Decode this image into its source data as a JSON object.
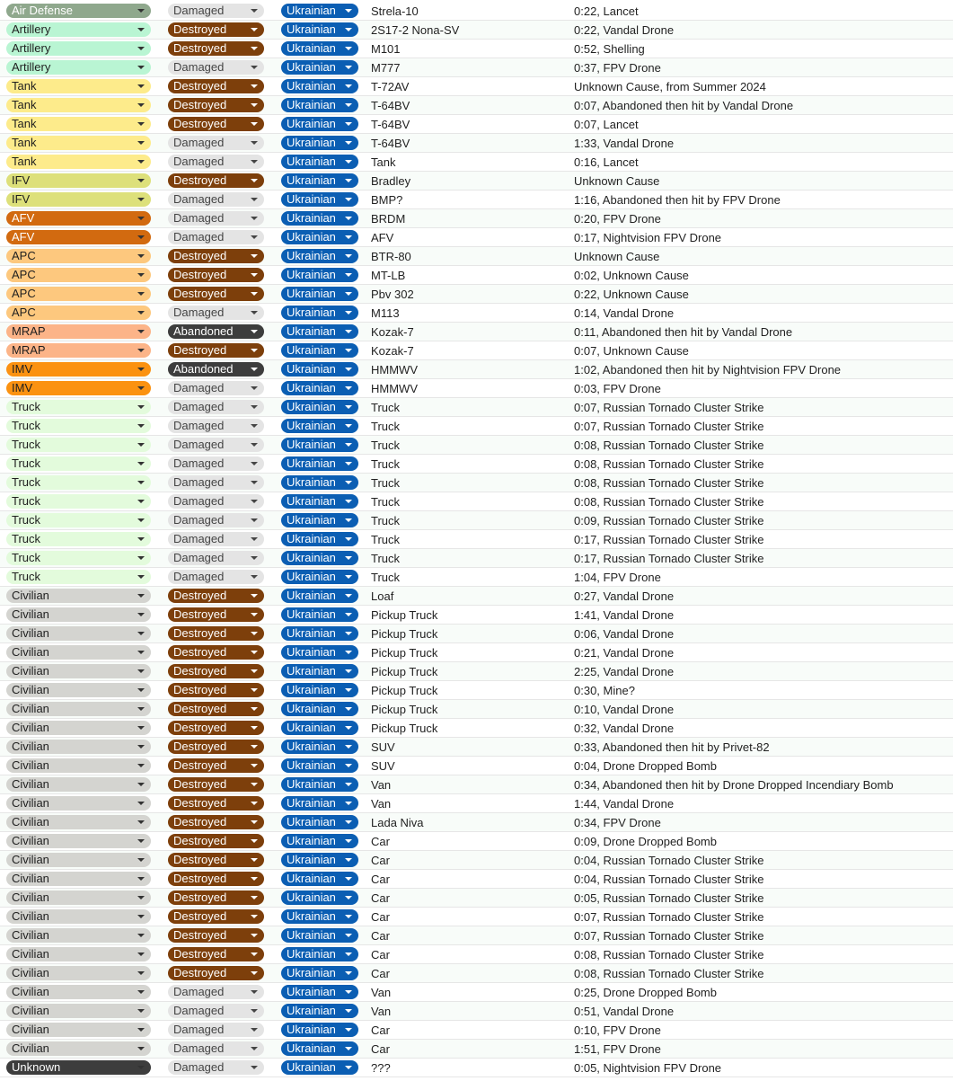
{
  "colors": {
    "type": {
      "Air Defense": {
        "bg": "#8fa88d",
        "fg": "#ffffff"
      },
      "Artillery": {
        "bg": "#b9f5d3",
        "fg": "#1f1f1f"
      },
      "Tank": {
        "bg": "#fdeb8b",
        "fg": "#1f1f1f"
      },
      "IFV": {
        "bg": "#dde07a",
        "fg": "#1f1f1f"
      },
      "AFV": {
        "bg": "#d26a10",
        "fg": "#ffffff"
      },
      "APC": {
        "bg": "#fdc87e",
        "fg": "#1f1f1f"
      },
      "MRAP": {
        "bg": "#fcb488",
        "fg": "#1f1f1f"
      },
      "IMV": {
        "bg": "#fb9211",
        "fg": "#1f1f1f"
      },
      "Truck": {
        "bg": "#e3fbdc",
        "fg": "#1f1f1f"
      },
      "Civilian": {
        "bg": "#d4d4d0",
        "fg": "#1f1f1f"
      },
      "Unknown": {
        "bg": "#3d3d3d",
        "fg": "#ffffff"
      }
    },
    "status": {
      "Damaged": {
        "bg": "#e4e4e4",
        "fg": "#454545"
      },
      "Destroyed": {
        "bg": "#7d3f0b",
        "fg": "#ffffff"
      },
      "Abandoned": {
        "bg": "#3d3d3d",
        "fg": "#ffffff"
      }
    },
    "side": {
      "Ukrainian": {
        "bg": "#0b5eb3",
        "fg": "#ffffff"
      }
    }
  },
  "rows": [
    {
      "type": "Air Defense",
      "status": "Damaged",
      "side": "Ukrainian",
      "model": "Strela-10",
      "note": "0:22, Lancet"
    },
    {
      "type": "Artillery",
      "status": "Destroyed",
      "side": "Ukrainian",
      "model": "2S17-2 Nona-SV",
      "note": "0:22, Vandal Drone"
    },
    {
      "type": "Artillery",
      "status": "Destroyed",
      "side": "Ukrainian",
      "model": "M101",
      "note": "0:52, Shelling"
    },
    {
      "type": "Artillery",
      "status": "Damaged",
      "side": "Ukrainian",
      "model": "M777",
      "note": "0:37, FPV Drone"
    },
    {
      "type": "Tank",
      "status": "Destroyed",
      "side": "Ukrainian",
      "model": "T-72AV",
      "note": "Unknown Cause, from Summer 2024"
    },
    {
      "type": "Tank",
      "status": "Destroyed",
      "side": "Ukrainian",
      "model": "T-64BV",
      "note": "0:07, Abandoned then hit by Vandal Drone"
    },
    {
      "type": "Tank",
      "status": "Destroyed",
      "side": "Ukrainian",
      "model": "T-64BV",
      "note": "0:07, Lancet"
    },
    {
      "type": "Tank",
      "status": "Damaged",
      "side": "Ukrainian",
      "model": "T-64BV",
      "note": "1:33, Vandal Drone"
    },
    {
      "type": "Tank",
      "status": "Damaged",
      "side": "Ukrainian",
      "model": "Tank",
      "note": "0:16, Lancet"
    },
    {
      "type": "IFV",
      "status": "Destroyed",
      "side": "Ukrainian",
      "model": "Bradley",
      "note": "Unknown Cause"
    },
    {
      "type": "IFV",
      "status": "Damaged",
      "side": "Ukrainian",
      "model": "BMP?",
      "note": "1:16, Abandoned then hit by FPV Drone"
    },
    {
      "type": "AFV",
      "status": "Damaged",
      "side": "Ukrainian",
      "model": "BRDM",
      "note": "0:20, FPV Drone"
    },
    {
      "type": "AFV",
      "status": "Damaged",
      "side": "Ukrainian",
      "model": "AFV",
      "note": "0:17, Nightvision FPV Drone"
    },
    {
      "type": "APC",
      "status": "Destroyed",
      "side": "Ukrainian",
      "model": "BTR-80",
      "note": "Unknown Cause"
    },
    {
      "type": "APC",
      "status": "Destroyed",
      "side": "Ukrainian",
      "model": "MT-LB",
      "note": "0:02, Unknown Cause"
    },
    {
      "type": "APC",
      "status": "Destroyed",
      "side": "Ukrainian",
      "model": "Pbv 302",
      "note": "0:22, Unknown Cause"
    },
    {
      "type": "APC",
      "status": "Damaged",
      "side": "Ukrainian",
      "model": "M113",
      "note": "0:14, Vandal Drone"
    },
    {
      "type": "MRAP",
      "status": "Abandoned",
      "side": "Ukrainian",
      "model": "Kozak-7",
      "note": "0:11, Abandoned then hit by Vandal Drone"
    },
    {
      "type": "MRAP",
      "status": "Destroyed",
      "side": "Ukrainian",
      "model": "Kozak-7",
      "note": "0:07, Unknown Cause"
    },
    {
      "type": "IMV",
      "status": "Abandoned",
      "side": "Ukrainian",
      "model": "HMMWV",
      "note": "1:02, Abandoned then hit by Nightvision FPV Drone"
    },
    {
      "type": "IMV",
      "status": "Damaged",
      "side": "Ukrainian",
      "model": "HMMWV",
      "note": "0:03, FPV Drone"
    },
    {
      "type": "Truck",
      "status": "Damaged",
      "side": "Ukrainian",
      "model": "Truck",
      "note": "0:07, Russian Tornado Cluster Strike"
    },
    {
      "type": "Truck",
      "status": "Damaged",
      "side": "Ukrainian",
      "model": "Truck",
      "note": "0:07, Russian Tornado Cluster Strike"
    },
    {
      "type": "Truck",
      "status": "Damaged",
      "side": "Ukrainian",
      "model": "Truck",
      "note": "0:08, Russian Tornado Cluster Strike"
    },
    {
      "type": "Truck",
      "status": "Damaged",
      "side": "Ukrainian",
      "model": "Truck",
      "note": "0:08, Russian Tornado Cluster Strike"
    },
    {
      "type": "Truck",
      "status": "Damaged",
      "side": "Ukrainian",
      "model": "Truck",
      "note": "0:08, Russian Tornado Cluster Strike"
    },
    {
      "type": "Truck",
      "status": "Damaged",
      "side": "Ukrainian",
      "model": "Truck",
      "note": "0:08, Russian Tornado Cluster Strike"
    },
    {
      "type": "Truck",
      "status": "Damaged",
      "side": "Ukrainian",
      "model": "Truck",
      "note": "0:09, Russian Tornado Cluster Strike"
    },
    {
      "type": "Truck",
      "status": "Damaged",
      "side": "Ukrainian",
      "model": "Truck",
      "note": "0:17, Russian Tornado Cluster Strike"
    },
    {
      "type": "Truck",
      "status": "Damaged",
      "side": "Ukrainian",
      "model": "Truck",
      "note": "0:17, Russian Tornado Cluster Strike"
    },
    {
      "type": "Truck",
      "status": "Damaged",
      "side": "Ukrainian",
      "model": "Truck",
      "note": "1:04, FPV Drone"
    },
    {
      "type": "Civilian",
      "status": "Destroyed",
      "side": "Ukrainian",
      "model": "Loaf",
      "note": "0:27, Vandal Drone"
    },
    {
      "type": "Civilian",
      "status": "Destroyed",
      "side": "Ukrainian",
      "model": "Pickup Truck",
      "note": "1:41, Vandal Drone"
    },
    {
      "type": "Civilian",
      "status": "Destroyed",
      "side": "Ukrainian",
      "model": "Pickup Truck",
      "note": "0:06, Vandal Drone"
    },
    {
      "type": "Civilian",
      "status": "Destroyed",
      "side": "Ukrainian",
      "model": "Pickup Truck",
      "note": "0:21, Vandal Drone"
    },
    {
      "type": "Civilian",
      "status": "Destroyed",
      "side": "Ukrainian",
      "model": "Pickup Truck",
      "note": "2:25, Vandal Drone"
    },
    {
      "type": "Civilian",
      "status": "Destroyed",
      "side": "Ukrainian",
      "model": "Pickup Truck",
      "note": "0:30, Mine?"
    },
    {
      "type": "Civilian",
      "status": "Destroyed",
      "side": "Ukrainian",
      "model": "Pickup Truck",
      "note": "0:10, Vandal Drone"
    },
    {
      "type": "Civilian",
      "status": "Destroyed",
      "side": "Ukrainian",
      "model": "Pickup Truck",
      "note": "0:32, Vandal Drone"
    },
    {
      "type": "Civilian",
      "status": "Destroyed",
      "side": "Ukrainian",
      "model": "SUV",
      "note": "0:33, Abandoned then hit by Privet-82"
    },
    {
      "type": "Civilian",
      "status": "Destroyed",
      "side": "Ukrainian",
      "model": "SUV",
      "note": "0:04, Drone Dropped Bomb"
    },
    {
      "type": "Civilian",
      "status": "Destroyed",
      "side": "Ukrainian",
      "model": "Van",
      "note": "0:34, Abandoned then hit by Drone Dropped Incendiary Bomb"
    },
    {
      "type": "Civilian",
      "status": "Destroyed",
      "side": "Ukrainian",
      "model": "Van",
      "note": "1:44, Vandal Drone"
    },
    {
      "type": "Civilian",
      "status": "Destroyed",
      "side": "Ukrainian",
      "model": "Lada Niva",
      "note": "0:34, FPV Drone"
    },
    {
      "type": "Civilian",
      "status": "Destroyed",
      "side": "Ukrainian",
      "model": "Car",
      "note": "0:09, Drone Dropped Bomb"
    },
    {
      "type": "Civilian",
      "status": "Destroyed",
      "side": "Ukrainian",
      "model": "Car",
      "note": "0:04, Russian Tornado Cluster Strike"
    },
    {
      "type": "Civilian",
      "status": "Destroyed",
      "side": "Ukrainian",
      "model": "Car",
      "note": "0:04, Russian Tornado Cluster Strike"
    },
    {
      "type": "Civilian",
      "status": "Destroyed",
      "side": "Ukrainian",
      "model": "Car",
      "note": "0:05, Russian Tornado Cluster Strike"
    },
    {
      "type": "Civilian",
      "status": "Destroyed",
      "side": "Ukrainian",
      "model": "Car",
      "note": "0:07, Russian Tornado Cluster Strike"
    },
    {
      "type": "Civilian",
      "status": "Destroyed",
      "side": "Ukrainian",
      "model": "Car",
      "note": "0:07, Russian Tornado Cluster Strike"
    },
    {
      "type": "Civilian",
      "status": "Destroyed",
      "side": "Ukrainian",
      "model": "Car",
      "note": "0:08, Russian Tornado Cluster Strike"
    },
    {
      "type": "Civilian",
      "status": "Destroyed",
      "side": "Ukrainian",
      "model": "Car",
      "note": "0:08, Russian Tornado Cluster Strike"
    },
    {
      "type": "Civilian",
      "status": "Damaged",
      "side": "Ukrainian",
      "model": "Van",
      "note": "0:25, Drone Dropped Bomb"
    },
    {
      "type": "Civilian",
      "status": "Damaged",
      "side": "Ukrainian",
      "model": "Van",
      "note": "0:51, Vandal Drone"
    },
    {
      "type": "Civilian",
      "status": "Damaged",
      "side": "Ukrainian",
      "model": "Car",
      "note": "0:10, FPV Drone"
    },
    {
      "type": "Civilian",
      "status": "Damaged",
      "side": "Ukrainian",
      "model": "Car",
      "note": "1:51, FPV Drone"
    },
    {
      "type": "Unknown",
      "status": "Damaged",
      "side": "Ukrainian",
      "model": "???",
      "note": "0:05, Nightvision FPV Drone"
    }
  ]
}
